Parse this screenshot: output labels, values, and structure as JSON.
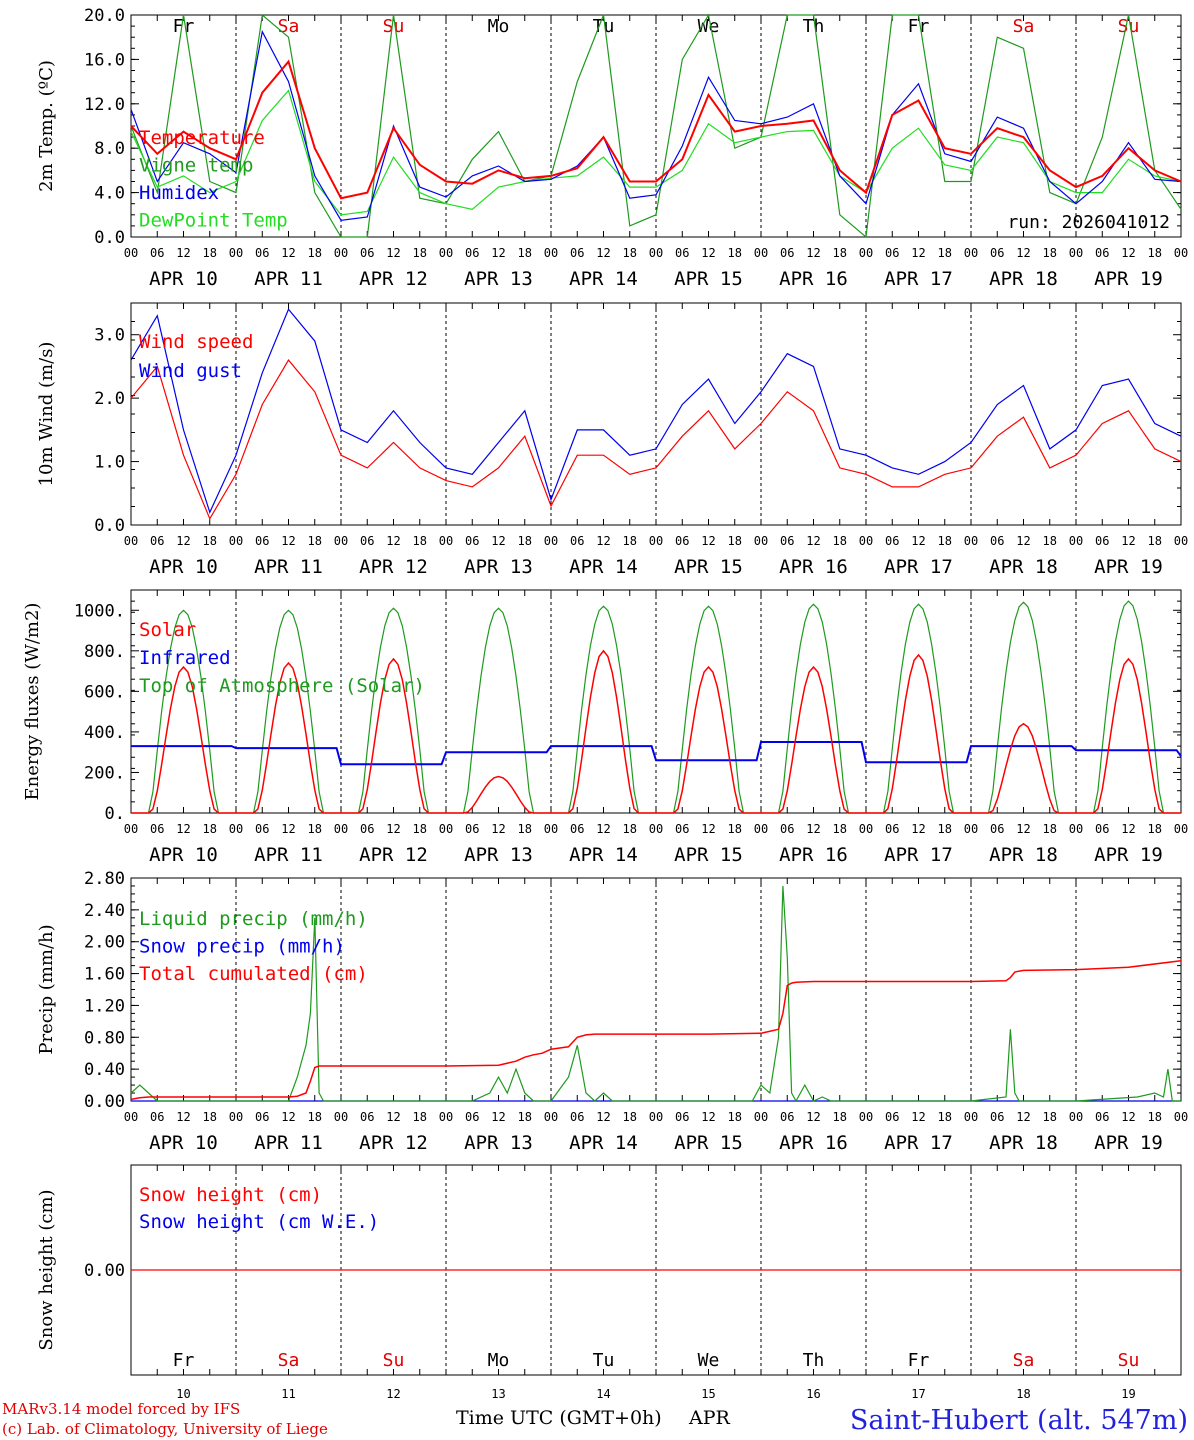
{
  "run_label": "run: 2026041012",
  "footer": {
    "model": "MARv3.14 model forced by IFS",
    "credit": "(c) Lab. of Climatology, University of Liege",
    "x_label": "Time UTC (GMT+0h)",
    "month": "APR",
    "station": "Saint-Hubert (alt. 547m)"
  },
  "days": {
    "abbr": [
      "Fr",
      "Sa",
      "Su",
      "Mo",
      "Tu",
      "We",
      "Th",
      "Fr",
      "Sa",
      "Su"
    ],
    "weekend": [
      false,
      true,
      true,
      false,
      false,
      false,
      false,
      false,
      true,
      true
    ],
    "dates": [
      "APR 10",
      "APR 11",
      "APR 12",
      "APR 13",
      "APR 14",
      "APR 15",
      "APR 16",
      "APR 17",
      "APR 18",
      "APR 19"
    ],
    "numbers": [
      "10",
      "11",
      "12",
      "13",
      "14",
      "15",
      "16",
      "17",
      "18",
      "19"
    ],
    "hour_labels": [
      "00",
      "06",
      "12",
      "18"
    ],
    "final_hour": "00"
  },
  "colors": {
    "red": "#ff0000",
    "green": "#1e9a1e",
    "blue": "#0000ee",
    "lightgreen": "#22dd22",
    "weekend": "#e00000"
  },
  "chart_data": [
    {
      "id": "temperature",
      "type": "line",
      "ylabel": "2m Temp. (ºC)",
      "ylim": [
        0,
        20
      ],
      "yticks": [
        "0.0",
        "4.0",
        "8.0",
        "12.0",
        "16.0",
        "20.0"
      ],
      "x_unit": "hours since APR 10 00 UTC",
      "legend": [
        "Temperature",
        "Vigne temp",
        "Humidex",
        "DewPoint Temp"
      ],
      "series": [
        {
          "name": "Temperature",
          "color": "#ff0000",
          "x": [
            0,
            6,
            12,
            18,
            24,
            30,
            36,
            42,
            48,
            54,
            60,
            66,
            72,
            78,
            84,
            90,
            96,
            102,
            108,
            114,
            120,
            126,
            132,
            138,
            144,
            150,
            156,
            162,
            168,
            174,
            180,
            186,
            192,
            198,
            204,
            210,
            216,
            222,
            228,
            234,
            240
          ],
          "y": [
            10,
            7.5,
            9.5,
            8,
            7,
            13,
            15.8,
            8,
            3.5,
            4,
            9.8,
            6.5,
            5,
            4.8,
            6,
            5.3,
            5.5,
            6.2,
            9,
            5,
            5,
            7,
            12.8,
            9.5,
            10,
            10.2,
            10.5,
            6,
            4,
            11,
            12.3,
            8,
            7.5,
            9.8,
            9,
            6,
            4.5,
            5.5,
            8,
            6,
            5
          ]
        },
        {
          "name": "Vigne temp",
          "color": "#1e9a1e",
          "x": [
            0,
            6,
            12,
            18,
            24,
            30,
            36,
            42,
            48,
            54,
            60,
            66,
            72,
            78,
            84,
            90,
            96,
            102,
            108,
            114,
            120,
            126,
            132,
            138,
            144,
            150,
            156,
            162,
            168,
            174,
            180,
            186,
            192,
            198,
            204,
            210,
            216,
            222,
            228,
            234,
            240
          ],
          "y": [
            10,
            4,
            20,
            5,
            4,
            20,
            18,
            4,
            0,
            0,
            20,
            3.5,
            3,
            7,
            9.5,
            5,
            5.5,
            14,
            20,
            1,
            2,
            16,
            20,
            8,
            9,
            20,
            20,
            2,
            0,
            20,
            20,
            5,
            5,
            18,
            17,
            4,
            3,
            9,
            20,
            6,
            2.5
          ]
        },
        {
          "name": "Humidex",
          "color": "#0000ee",
          "x": [
            0,
            6,
            12,
            18,
            24,
            30,
            36,
            42,
            48,
            54,
            60,
            66,
            72,
            78,
            84,
            90,
            96,
            102,
            108,
            114,
            120,
            126,
            132,
            138,
            144,
            150,
            156,
            162,
            168,
            174,
            180,
            186,
            192,
            198,
            204,
            210,
            216,
            222,
            228,
            234,
            240
          ],
          "y": [
            11.5,
            5,
            8.5,
            7.5,
            5.8,
            18.5,
            14,
            5.5,
            1.5,
            1.8,
            10,
            4.5,
            3.6,
            5.5,
            6.4,
            5,
            5.2,
            6.4,
            9,
            3.5,
            3.8,
            8.2,
            14.4,
            10.5,
            10.2,
            10.8,
            12,
            5.5,
            3,
            11,
            13.8,
            7.5,
            6.8,
            10.8,
            9.8,
            5,
            3,
            5,
            8.5,
            5.2,
            5
          ]
        },
        {
          "name": "DewPoint Temp",
          "color": "#22dd22",
          "x": [
            0,
            6,
            12,
            18,
            24,
            30,
            36,
            42,
            48,
            54,
            60,
            66,
            72,
            78,
            84,
            90,
            96,
            102,
            108,
            114,
            120,
            126,
            132,
            138,
            144,
            150,
            156,
            162,
            168,
            174,
            180,
            186,
            192,
            198,
            204,
            210,
            216,
            222,
            228,
            234,
            240
          ],
          "y": [
            9.5,
            4.5,
            5.5,
            4,
            5,
            10.5,
            13.2,
            5,
            2,
            2.3,
            7.2,
            4,
            3,
            2.5,
            4.5,
            5,
            5.3,
            5.5,
            7.2,
            4.5,
            4.5,
            6,
            10.2,
            8.5,
            9,
            9.5,
            9.6,
            5.5,
            4,
            8,
            9.8,
            6.5,
            6,
            9,
            8.5,
            5,
            4,
            4,
            7,
            5.5,
            5
          ]
        }
      ]
    },
    {
      "id": "wind",
      "type": "line",
      "ylabel": "10m Wind (m/s)",
      "ylim": [
        0,
        3.5
      ],
      "yticks": [
        "0.0",
        "1.0",
        "2.0",
        "3.0"
      ],
      "x_unit": "hours since APR 10 00 UTC",
      "legend": [
        "Wind speed",
        "Wind gust"
      ],
      "series": [
        {
          "name": "Wind speed",
          "color": "#ff0000",
          "x": [
            0,
            6,
            12,
            18,
            24,
            30,
            36,
            42,
            48,
            54,
            60,
            66,
            72,
            78,
            84,
            90,
            96,
            102,
            108,
            114,
            120,
            126,
            132,
            138,
            144,
            150,
            156,
            162,
            168,
            174,
            180,
            186,
            192,
            198,
            204,
            210,
            216,
            222,
            228,
            234,
            240
          ],
          "y": [
            2,
            2.5,
            1.1,
            0.1,
            0.8,
            1.9,
            2.6,
            2.1,
            1.1,
            0.9,
            1.3,
            0.9,
            0.7,
            0.6,
            0.9,
            1.4,
            0.3,
            1.1,
            1.1,
            0.8,
            0.9,
            1.4,
            1.8,
            1.2,
            1.6,
            2.1,
            1.8,
            0.9,
            0.8,
            0.6,
            0.6,
            0.8,
            0.9,
            1.4,
            1.7,
            0.9,
            1.1,
            1.6,
            1.8,
            1.2,
            1.0
          ]
        },
        {
          "name": "Wind gust",
          "color": "#0000ee",
          "x": [
            0,
            6,
            12,
            18,
            24,
            30,
            36,
            42,
            48,
            54,
            60,
            66,
            72,
            78,
            84,
            90,
            96,
            102,
            108,
            114,
            120,
            126,
            132,
            138,
            144,
            150,
            156,
            162,
            168,
            174,
            180,
            186,
            192,
            198,
            204,
            210,
            216,
            222,
            228,
            234,
            240
          ],
          "y": [
            2.6,
            3.3,
            1.5,
            0.2,
            1.1,
            2.4,
            3.4,
            2.9,
            1.5,
            1.3,
            1.8,
            1.3,
            0.9,
            0.8,
            1.3,
            1.8,
            0.4,
            1.5,
            1.5,
            1.1,
            1.2,
            1.9,
            2.3,
            1.6,
            2.1,
            2.7,
            2.5,
            1.2,
            1.1,
            0.9,
            0.8,
            1.0,
            1.3,
            1.9,
            2.2,
            1.2,
            1.5,
            2.2,
            2.3,
            1.6,
            1.4
          ]
        }
      ]
    },
    {
      "id": "energy",
      "type": "line",
      "ylabel": "Energy fluxes (W/m2)",
      "ylim": [
        0,
        1100
      ],
      "yticks": [
        "0.",
        "200.",
        "400.",
        "600.",
        "800.",
        "1000."
      ],
      "x_unit": "hours since APR 10 00 UTC",
      "legend": [
        "Solar",
        "Infrared",
        "Top of Atmosphere (Solar)"
      ],
      "toa_daily_peak": [
        1000,
        1000,
        1010,
        1010,
        1020,
        1020,
        1030,
        1030,
        1040,
        1045
      ],
      "solar_daily_peak": [
        720,
        740,
        760,
        180,
        800,
        720,
        720,
        780,
        440,
        760
      ],
      "infrared_daily_level": [
        330,
        320,
        240,
        300,
        330,
        260,
        350,
        250,
        330,
        310
      ]
    },
    {
      "id": "precip",
      "type": "line",
      "ylabel": "Precip (mm/h)",
      "ylim": [
        0,
        2.8
      ],
      "yticks": [
        "0.00",
        "0.40",
        "0.80",
        "1.20",
        "1.60",
        "2.00",
        "2.40",
        "2.80"
      ],
      "x_unit": "hours since APR 10 00 UTC",
      "legend": [
        "Liquid precip (mm/h)",
        "Snow precip (mm/h)",
        "Total cumulated (cm)"
      ],
      "series": [
        {
          "name": "Liquid precip (mm/h)",
          "color": "#1e9a1e",
          "x": [
            0,
            2,
            4,
            6,
            12,
            24,
            36,
            38,
            40,
            41,
            42,
            43,
            44,
            45,
            46,
            48,
            60,
            72,
            78,
            82,
            84,
            86,
            88,
            90,
            92,
            94,
            96,
            100,
            102,
            104,
            106,
            108,
            110,
            112,
            114,
            120,
            132,
            142,
            144,
            146,
            148,
            149,
            150,
            151,
            152,
            154,
            156,
            158,
            160,
            162,
            168,
            180,
            192,
            200,
            201,
            202,
            203,
            204,
            216,
            230,
            234,
            236,
            237,
            238,
            240
          ],
          "y": [
            0.1,
            0.2,
            0.1,
            0,
            0,
            0,
            0,
            0.3,
            0.7,
            1.1,
            2.3,
            0.1,
            0,
            0,
            0,
            0,
            0,
            0,
            0,
            0.1,
            0.3,
            0.1,
            0.4,
            0.1,
            0,
            0,
            0,
            0.3,
            0.7,
            0.1,
            0,
            0.1,
            0,
            0,
            0,
            0,
            0,
            0,
            0.2,
            0.1,
            0.8,
            2.7,
            1.8,
            0.1,
            0,
            0.2,
            0,
            0.05,
            0,
            0,
            0,
            0,
            0,
            0.05,
            0.9,
            0.1,
            0,
            0,
            0,
            0.05,
            0.1,
            0.05,
            0.4,
            0,
            0
          ]
        },
        {
          "name": "Snow precip (mm/h)",
          "color": "#0000ee",
          "x": [
            0,
            240
          ],
          "y": [
            0,
            0
          ]
        },
        {
          "name": "Total cumulated (cm)",
          "color": "#ff0000",
          "x": [
            0,
            2,
            4,
            12,
            24,
            36,
            38,
            40,
            41,
            42,
            43,
            44,
            48,
            60,
            72,
            84,
            88,
            90,
            92,
            94,
            96,
            100,
            102,
            104,
            106,
            108,
            120,
            132,
            144,
            148,
            149,
            150,
            151,
            152,
            156,
            168,
            180,
            192,
            200,
            201,
            202,
            204,
            216,
            228,
            240
          ],
          "y": [
            0.02,
            0.04,
            0.05,
            0.05,
            0.05,
            0.05,
            0.06,
            0.1,
            0.25,
            0.42,
            0.44,
            0.44,
            0.44,
            0.44,
            0.44,
            0.45,
            0.5,
            0.55,
            0.58,
            0.6,
            0.65,
            0.68,
            0.8,
            0.83,
            0.84,
            0.84,
            0.84,
            0.84,
            0.85,
            0.9,
            1.1,
            1.45,
            1.48,
            1.49,
            1.5,
            1.5,
            1.5,
            1.5,
            1.51,
            1.55,
            1.62,
            1.64,
            1.65,
            1.68,
            1.76
          ]
        }
      ]
    },
    {
      "id": "snow",
      "type": "line",
      "ylabel": "Snow height (cm)",
      "yticks": [
        "0.00"
      ],
      "x_unit": "hours since APR 10 00 UTC",
      "legend": [
        "Snow height (cm)",
        "Snow height (cm W.E.)"
      ],
      "series": [
        {
          "name": "Snow height (cm)",
          "color": "#ff0000",
          "x": [
            0,
            240
          ],
          "y": [
            0,
            0
          ]
        },
        {
          "name": "Snow height (cm W.E.)",
          "color": "#0000ee",
          "x": [
            0,
            240
          ],
          "y": [
            0,
            0
          ]
        }
      ]
    }
  ]
}
